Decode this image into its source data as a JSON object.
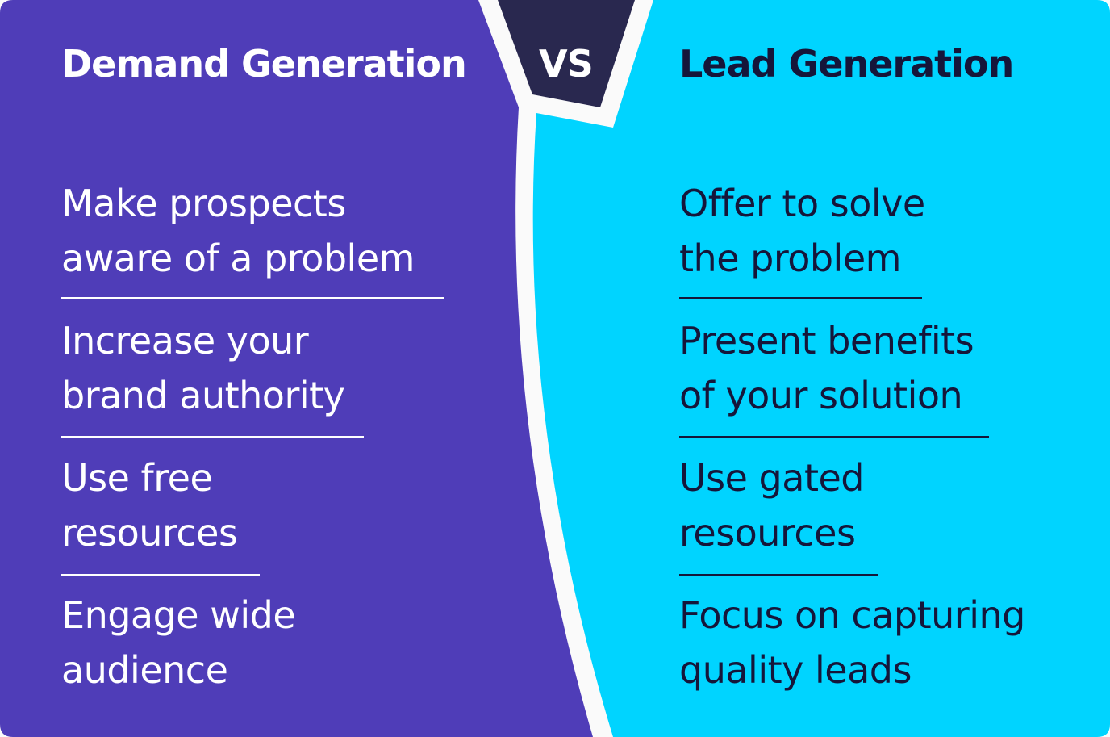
{
  "colors": {
    "demand": "#4f3db8",
    "lead": "#00d4ff",
    "vs": "#29284f",
    "background": "#fafafa"
  },
  "vs_label": "VS",
  "demand": {
    "title": "Demand Generation",
    "items": [
      "Make prospects\naware of a problem",
      "Increase your\nbrand authority",
      "Use free\nresources",
      "Engage wide\naudience"
    ]
  },
  "lead": {
    "title": "Lead Generation",
    "items": [
      "Offer to solve\nthe problem",
      "Present benefits\nof your solution",
      "Use gated\nresources",
      "Focus on capturing\nquality leads"
    ]
  }
}
